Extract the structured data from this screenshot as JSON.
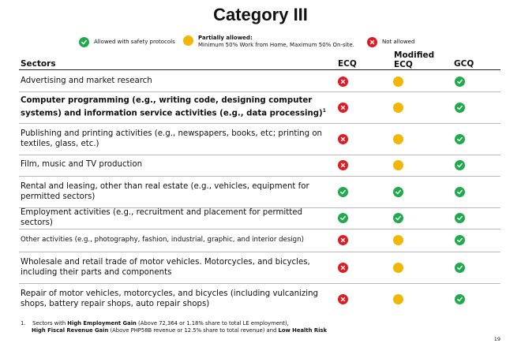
{
  "title": "Category III",
  "legend": {
    "allowed": "Allowed with safety protocols",
    "partial_title": "Partially allowed:",
    "partial_detail": "Minimum 50% Work from Home,  Maximum 50% On-site.",
    "not_allowed": "Not allowed"
  },
  "colors": {
    "allowed": "#1faa4b",
    "partial": "#f2b705",
    "not_allowed": "#e01b24"
  },
  "icons": {
    "allowed": "check-circle-icon",
    "partial": "dot-circle-icon",
    "not_allowed": "x-circle-icon"
  },
  "columns": {
    "sectors": "Sectors",
    "ecq": "ECQ",
    "mecq_line1": "Modified",
    "mecq_line2": "ECQ",
    "gcq": "GCQ"
  },
  "rows": [
    {
      "sector": "Advertising and market research",
      "ecq": "not_allowed",
      "mecq": "partial",
      "gcq": "allowed"
    },
    {
      "sector": "Computer programming (e.g., writing code, designing computer systems)  and information service activities (e.g., data processing)",
      "note": "1",
      "ecq": "not_allowed",
      "mecq": "partial",
      "gcq": "allowed"
    },
    {
      "sector": "Publishing and printing activities (e.g., newspapers, books, etc; printing on textiles, glass, etc.)",
      "ecq": "not_allowed",
      "mecq": "partial",
      "gcq": "allowed"
    },
    {
      "sector": "Film, music and TV production",
      "ecq": "not_allowed",
      "mecq": "partial",
      "gcq": "allowed"
    },
    {
      "sector": "Rental and leasing, other than real estate (e.g., vehicles, equipment for permitted sectors)",
      "ecq": "allowed",
      "mecq": "allowed",
      "gcq": "allowed"
    },
    {
      "sector": "Employment activities (e.g., recruitment and placement for permitted sectors)",
      "ecq": "allowed",
      "mecq": "allowed",
      "gcq": "allowed"
    },
    {
      "sector": "Other activities (e.g., photography, fashion, industrial, graphic, and interior design)",
      "ecq": "not_allowed",
      "mecq": "partial",
      "gcq": "allowed"
    },
    {
      "sector": "Wholesale and retail trade of motor vehicles. Motorcycles, and bicycles, including their parts and components",
      "ecq": "not_allowed",
      "mecq": "partial",
      "gcq": "allowed"
    },
    {
      "sector": "Repair of motor vehicles, motorcycles, and bicycles (including vulcanizing shops, battery repair shops, auto repair shops)",
      "ecq": "not_allowed",
      "mecq": "partial",
      "gcq": "allowed"
    }
  ],
  "footnote": {
    "number": "1.",
    "t1": "Sectors with ",
    "b1": "High Employment Gain",
    "t2": " (Above 72,364 or 1.18% share to total LE employment),",
    "b2": "High Fiscal Revenue Gain",
    "t3": " (Above PHP58B revenue or 12.5% share to total revenue) and  ",
    "b3": "Low Health Risk"
  },
  "page_number": "19"
}
